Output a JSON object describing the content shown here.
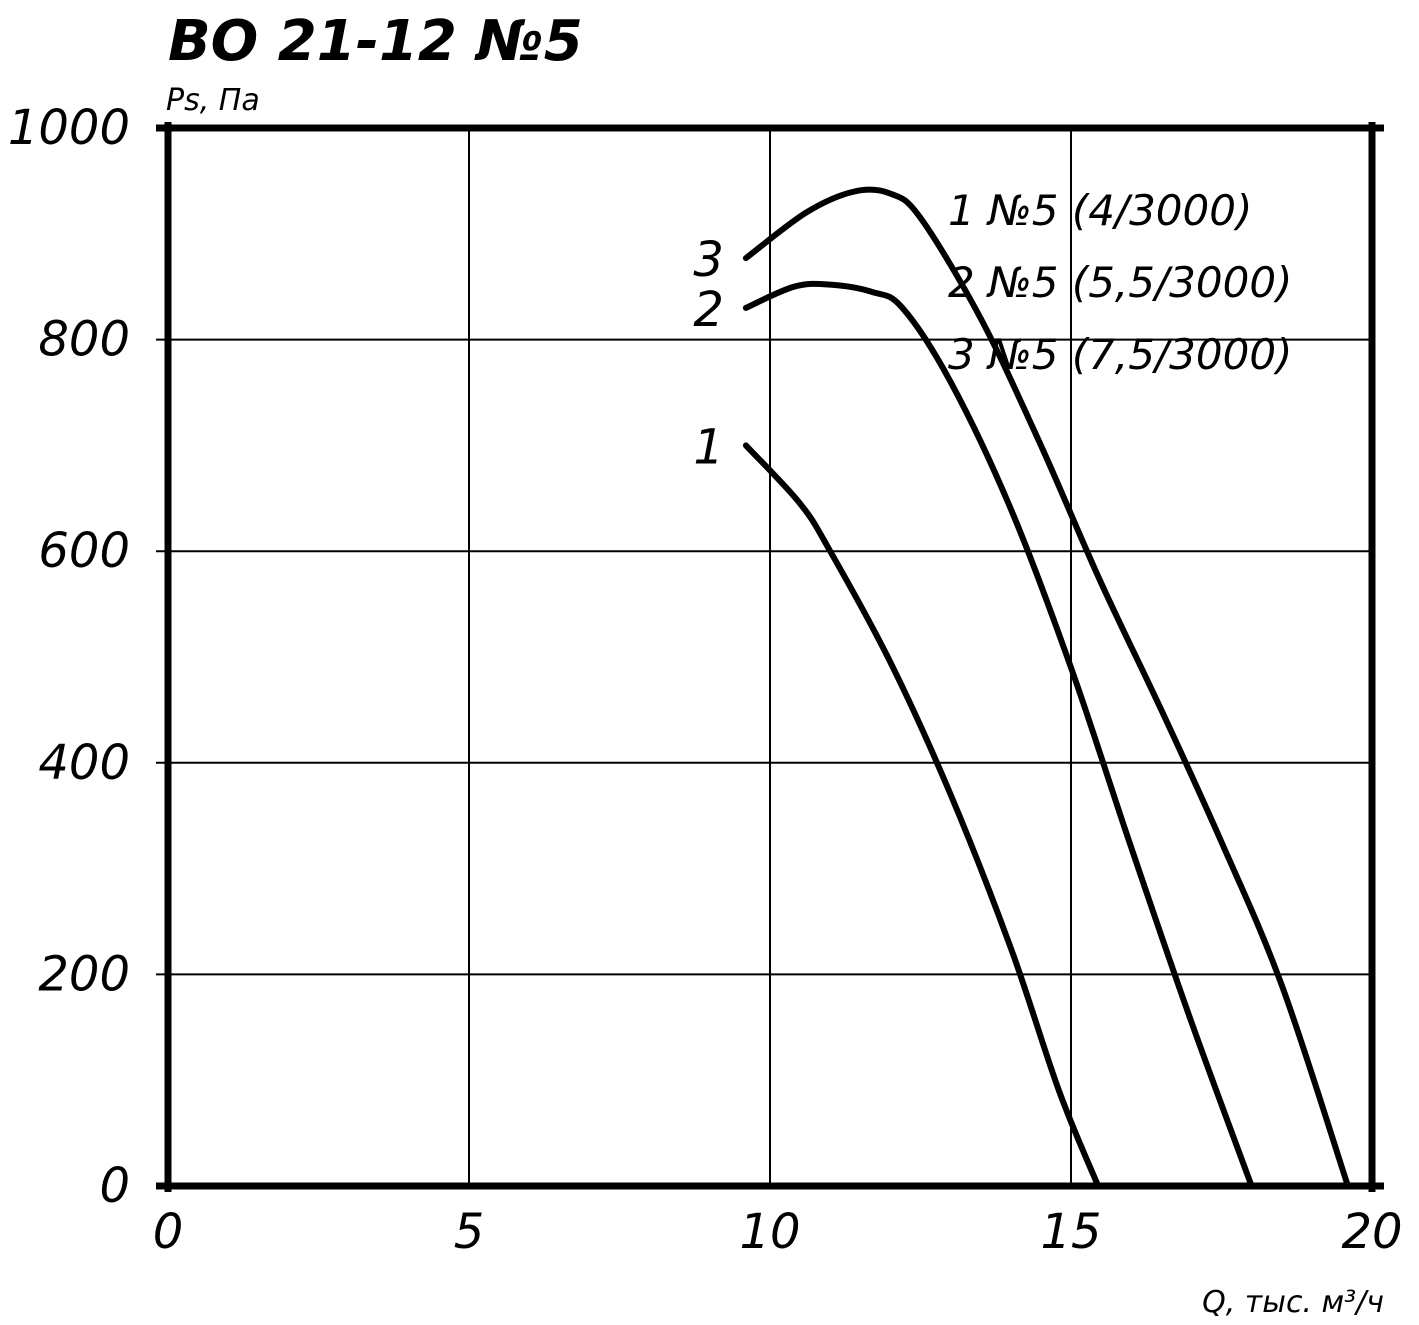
{
  "chart_data": {
    "type": "line",
    "title": "ВО 21-12 №5",
    "ylabel": "Ps, Па",
    "xlabel": "Q, тыс. м³/ч",
    "xlim": [
      0,
      20
    ],
    "ylim": [
      0,
      1000
    ],
    "x_ticks": [
      "0",
      "5",
      "10",
      "15",
      "20"
    ],
    "y_ticks": [
      "0",
      "200",
      "400",
      "600",
      "800",
      "1000"
    ],
    "x_gridlines": [
      5,
      10,
      15
    ],
    "y_gridlines": [
      200,
      400,
      600,
      800
    ],
    "legend": [
      "1 №5 (4/3000)",
      "2 №5 (5,5/3000)",
      "3 №5 (7,5/3000)"
    ],
    "legend_position": "top-right",
    "grid": true,
    "series": [
      {
        "label": "1",
        "points": [
          [
            9.6,
            700
          ],
          [
            10.5,
            645
          ],
          [
            11.0,
            600
          ],
          [
            12.0,
            495
          ],
          [
            13.0,
            370
          ],
          [
            14.0,
            225
          ],
          [
            14.8,
            90
          ],
          [
            15.45,
            0
          ]
        ]
      },
      {
        "label": "2",
        "points": [
          [
            9.6,
            830
          ],
          [
            10.4,
            850
          ],
          [
            11.0,
            852
          ],
          [
            11.7,
            845
          ],
          [
            12.2,
            830
          ],
          [
            13.0,
            760
          ],
          [
            14.0,
            640
          ],
          [
            15.0,
            490
          ],
          [
            16.0,
            320
          ],
          [
            17.0,
            155
          ],
          [
            18.0,
            0
          ]
        ]
      },
      {
        "label": "3",
        "points": [
          [
            9.6,
            877
          ],
          [
            10.6,
            920
          ],
          [
            11.4,
            940
          ],
          [
            12.0,
            938
          ],
          [
            12.5,
            915
          ],
          [
            13.5,
            820
          ],
          [
            14.5,
            700
          ],
          [
            15.5,
            570
          ],
          [
            16.5,
            450
          ],
          [
            17.5,
            325
          ],
          [
            18.5,
            190
          ],
          [
            19.6,
            0
          ]
        ]
      }
    ]
  }
}
